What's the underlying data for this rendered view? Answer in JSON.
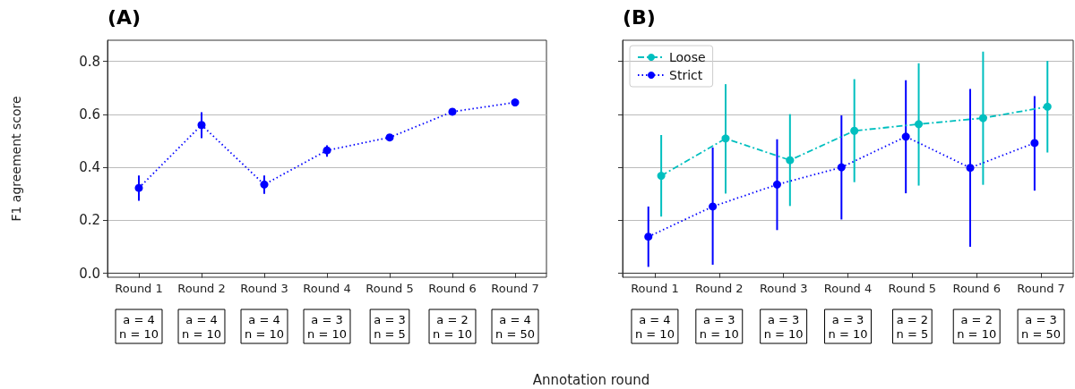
{
  "chart_data": [
    {
      "type": "line",
      "title": "(A)",
      "ylabel": "F1 agreement score",
      "xlabel": "Annotation round",
      "categories": [
        "Round 1",
        "Round 2",
        "Round 3",
        "Round 4",
        "Round 5",
        "Round 6",
        "Round 7"
      ],
      "series": [
        {
          "color": "#0000ff",
          "line_style": "dotted",
          "values": [
            0.322,
            0.56,
            0.335,
            0.464,
            0.513,
            0.61,
            0.645
          ],
          "errors": [
            [
              0.274,
              0.369
            ],
            [
              0.51,
              0.608
            ],
            [
              0.3,
              0.369
            ],
            [
              0.44,
              0.483
            ],
            [
              0.5,
              0.525
            ],
            null,
            null
          ]
        }
      ],
      "ylim": [
        -0.015,
        0.88
      ],
      "yticks": [
        {
          "value": 0,
          "label": "0.0"
        },
        0.2,
        0.4,
        0.6,
        0.8
      ],
      "grid": "y",
      "marker": "circle",
      "legend": false,
      "annotations": [
        "a = 4\nn = 10",
        "a = 4\nn = 10",
        "a = 4\nn = 10",
        "a = 3\nn = 10",
        "a = 3\nn = 5",
        "a = 2\nn = 10",
        "a = 4\nn = 50"
      ]
    },
    {
      "type": "line",
      "title": "(B)",
      "categories": [
        "Round 1",
        "Round 2",
        "Round 3",
        "Round 4",
        "Round 5",
        "Round 6",
        "Round 7"
      ],
      "series": [
        {
          "name": "Loose",
          "color": "#00bfbf",
          "line_style": "dashed",
          "values": [
            0.368,
            0.509,
            0.427,
            0.538,
            0.563,
            0.586,
            0.629
          ],
          "errors": [
            [
              0.214,
              0.522
            ],
            [
              0.301,
              0.714
            ],
            [
              0.254,
              0.601
            ],
            [
              0.344,
              0.733
            ],
            [
              0.331,
              0.793
            ],
            [
              0.334,
              0.837
            ],
            [
              0.456,
              0.802
            ]
          ]
        },
        {
          "name": "Strict",
          "color": "#0000ff",
          "line_style": "dotted",
          "values": [
            0.138,
            0.252,
            0.335,
            0.4,
            0.516,
            0.398,
            0.492
          ],
          "errors": [
            [
              0.024,
              0.252
            ],
            [
              0.032,
              0.475
            ],
            [
              0.163,
              0.506
            ],
            [
              0.203,
              0.596
            ],
            [
              0.302,
              0.729
            ],
            [
              0.1,
              0.696
            ],
            [
              0.312,
              0.669
            ]
          ]
        }
      ],
      "ylim": [
        -0.015,
        0.88
      ],
      "yticks": [
        0,
        0.2,
        0.4,
        0.6,
        0.8
      ],
      "grid": "y",
      "marker": "circle",
      "legend": "top left",
      "tick_labels": "x",
      "annotations": [
        "a = 4\nn = 10",
        "a = 3\nn = 10",
        "a = 3\nn = 10",
        "a = 3\nn = 10",
        "a = 2\nn = 5",
        "a = 2\nn = 10",
        "a = 3\nn = 50"
      ]
    }
  ]
}
